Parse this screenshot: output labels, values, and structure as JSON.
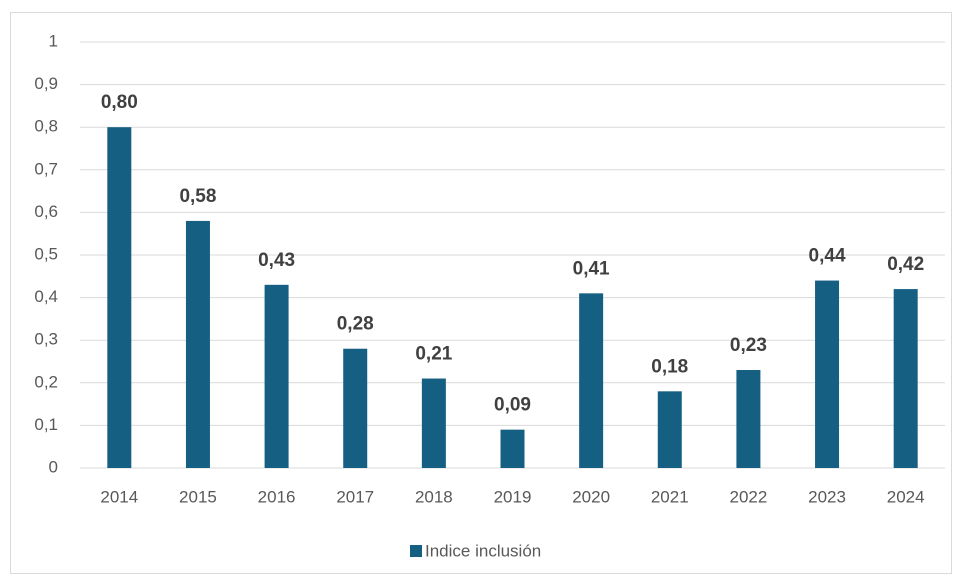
{
  "chart_data": {
    "type": "bar",
    "categories": [
      "2014",
      "2015",
      "2016",
      "2017",
      "2018",
      "2019",
      "2020",
      "2021",
      "2022",
      "2023",
      "2024"
    ],
    "series": [
      {
        "name": "Indice inclusión",
        "color": "#156082",
        "values": [
          0.8,
          0.58,
          0.43,
          0.28,
          0.21,
          0.09,
          0.41,
          0.18,
          0.23,
          0.44,
          0.42
        ],
        "value_labels": [
          "0,80",
          "0,58",
          "0,43",
          "0,28",
          "0,21",
          "0,09",
          "0,41",
          "0,18",
          "0,23",
          "0,44",
          "0,42"
        ]
      }
    ],
    "ylim": [
      0,
      1
    ],
    "yticks": [
      0,
      {
        "value": 0.1,
        "label": "0,1"
      },
      {
        "value": 0.2,
        "label": "0,2"
      },
      {
        "value": 0.3,
        "label": "0,3"
      },
      {
        "value": 0.4,
        "label": "0,4"
      },
      {
        "value": 0.5,
        "label": "0,5"
      },
      {
        "value": 0.6,
        "label": "0,6"
      },
      {
        "value": 0.7,
        "label": "0,7"
      },
      {
        "value": 0.8,
        "label": "0,8"
      },
      {
        "value": 0.9,
        "label": "0,9"
      },
      1
    ],
    "grid": true,
    "legend": "bottom"
  }
}
